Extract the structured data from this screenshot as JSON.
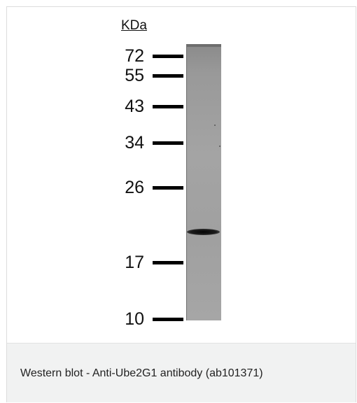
{
  "unit_label": "KDa",
  "markers": [
    {
      "label": "72",
      "kda": 72
    },
    {
      "label": "55",
      "kda": 55
    },
    {
      "label": "43",
      "kda": 43
    },
    {
      "label": "34",
      "kda": 34
    },
    {
      "label": "26",
      "kda": 26
    },
    {
      "label": "17",
      "kda": 17
    },
    {
      "label": "10",
      "kda": 10
    }
  ],
  "caption": "Western blot - Anti-Ube2G1 antibody (ab101371)",
  "colors": {
    "lane": "#a0a0a0",
    "band": "#111111",
    "caption_background": "#f1f2f2"
  }
}
